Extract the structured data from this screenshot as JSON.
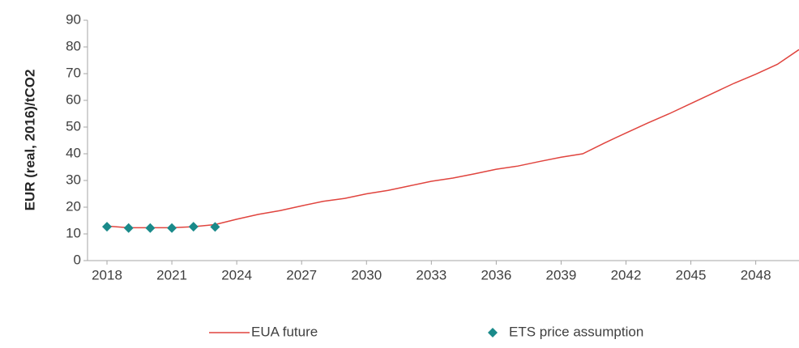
{
  "chart_data": {
    "type": "line",
    "y_label": "EUR  (real, 2016)/tCO2",
    "xlim": [
      2017.1,
      2050
    ],
    "xticks": [
      2018,
      2021,
      2024,
      2027,
      2030,
      2033,
      2036,
      2039,
      2042,
      2045,
      2048
    ],
    "ylim": [
      0,
      90
    ],
    "yticks": [
      0,
      10,
      20,
      30,
      40,
      50,
      60,
      70,
      80,
      90
    ],
    "grid": false,
    "legend": "bottom",
    "series": [
      {
        "name": "EUA future",
        "type": "line",
        "color": "#e0443e",
        "x": [
          2018,
          2019,
          2020,
          2021,
          2022,
          2023,
          2024,
          2025,
          2026,
          2027,
          2028,
          2029,
          2030,
          2031,
          2032,
          2033,
          2034,
          2035,
          2036,
          2037,
          2038,
          2039,
          2040,
          2041,
          2042,
          2043,
          2044,
          2045,
          2046,
          2047,
          2048,
          2049,
          2050
        ],
        "values": [
          12.9,
          12.3,
          12.3,
          12.3,
          12.7,
          13.5,
          15.5,
          17.3,
          18.7,
          20.5,
          22.2,
          23.3,
          25,
          26.3,
          28,
          29.7,
          30.9,
          32.5,
          34.2,
          35.4,
          37.1,
          38.7,
          40,
          44,
          47.8,
          51.5,
          55,
          58.8,
          62.6,
          66.4,
          69.8,
          73.5,
          79
        ]
      },
      {
        "name": "ETS price assumption",
        "type": "scatter",
        "color": "#1a8a8a",
        "x": [
          2018,
          2019,
          2020,
          2021,
          2022,
          2023
        ],
        "values": [
          12.7,
          12.2,
          12.2,
          12.2,
          12.7,
          12.6
        ]
      }
    ]
  }
}
